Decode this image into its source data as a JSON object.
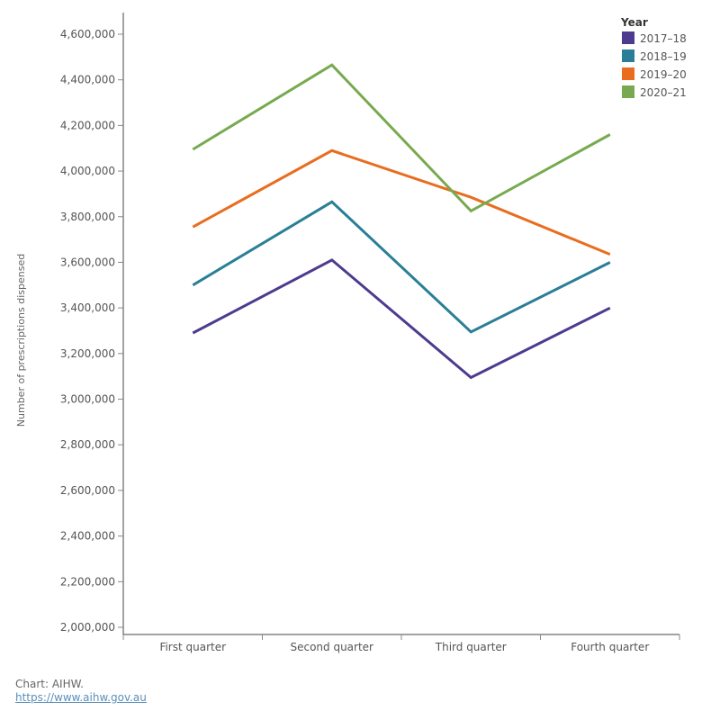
{
  "chart_data": {
    "type": "line",
    "categories": [
      "First quarter",
      "Second quarter",
      "Third quarter",
      "Fourth quarter"
    ],
    "ylabel": "Number of prescriptions dispensed",
    "xlabel": "",
    "ylim": [
      2000000,
      4600000
    ],
    "yticks": [
      "2,000,000",
      "2,200,000",
      "2,400,000",
      "2,600,000",
      "2,800,000",
      "3,000,000",
      "3,200,000",
      "3,400,000",
      "3,600,000",
      "3,800,000",
      "4,000,000",
      "4,200,000",
      "4,400,000",
      "4,600,000"
    ],
    "ytick_values": [
      2000000,
      2200000,
      2400000,
      2600000,
      2800000,
      3000000,
      3200000,
      3400000,
      3600000,
      3800000,
      4000000,
      4200000,
      4400000,
      4600000
    ],
    "legend": {
      "title": "Year",
      "position": "top-right"
    },
    "grid": false,
    "series": [
      {
        "name": "2017–18",
        "color": "#4e3a8e",
        "values": [
          3290000,
          3610000,
          3095000,
          3400000
        ]
      },
      {
        "name": "2018–19",
        "color": "#2a7f96",
        "values": [
          3500000,
          3865000,
          3295000,
          3600000
        ]
      },
      {
        "name": "2019–20",
        "color": "#e86d1f",
        "values": [
          3755000,
          4090000,
          3885000,
          3635000
        ]
      },
      {
        "name": "2020–21",
        "color": "#77aa4f",
        "values": [
          4095000,
          4465000,
          3825000,
          4160000
        ]
      }
    ]
  },
  "footer": {
    "source": "Chart: AIHW.",
    "link": "https://www.aihw.gov.au"
  }
}
